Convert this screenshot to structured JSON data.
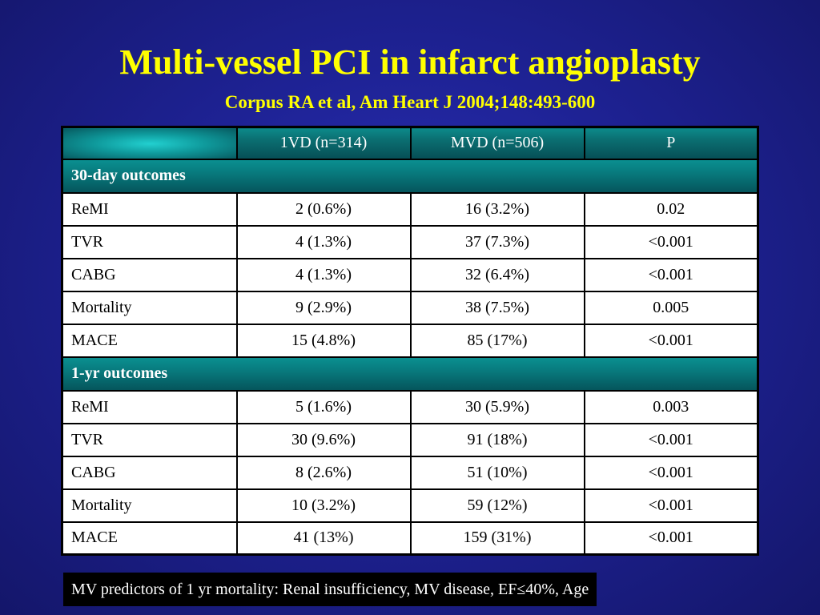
{
  "title": "Multi-vessel PCI in infarct angioplasty",
  "subtitle": "Corpus RA et al, Am Heart J 2004;148:493-600",
  "table": {
    "headers": [
      "",
      "1VD (n=314)",
      "MVD (n=506)",
      "P"
    ],
    "sections": [
      {
        "label": "30-day outcomes",
        "rows": [
          [
            "ReMI",
            "2 (0.6%)",
            "16 (3.2%)",
            "0.02"
          ],
          [
            "TVR",
            "4 (1.3%)",
            "37 (7.3%)",
            "<0.001"
          ],
          [
            "CABG",
            "4 (1.3%)",
            "32 (6.4%)",
            "<0.001"
          ],
          [
            "Mortality",
            "9 (2.9%)",
            "38 (7.5%)",
            "0.005"
          ],
          [
            "MACE",
            "15 (4.8%)",
            "85 (17%)",
            "<0.001"
          ]
        ]
      },
      {
        "label": "1-yr outcomes",
        "rows": [
          [
            "ReMI",
            "5 (1.6%)",
            "30 (5.9%)",
            "0.003"
          ],
          [
            "TVR",
            "30 (9.6%)",
            "91 (18%)",
            "<0.001"
          ],
          [
            "CABG",
            "8 (2.6%)",
            "51 (10%)",
            "<0.001"
          ],
          [
            "Mortality",
            "10 (3.2%)",
            "59 (12%)",
            "<0.001"
          ],
          [
            "MACE",
            "41 (13%)",
            "159 (31%)",
            "<0.001"
          ]
        ]
      }
    ]
  },
  "footnote": "MV predictors of 1 yr mortality: Renal insufficiency, MV disease, EF≤40%, Age",
  "colors": {
    "title": "#ffff00",
    "background": "#1e2294",
    "header_teal": "#087a7d"
  }
}
